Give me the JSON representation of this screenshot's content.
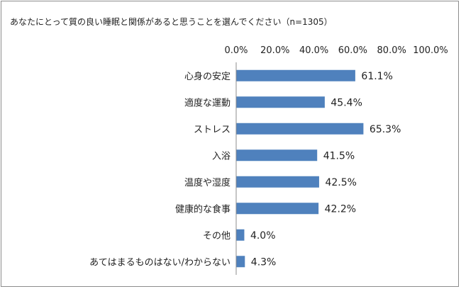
{
  "chart_data": {
    "type": "bar",
    "orientation": "horizontal",
    "title": "あなたにとって質の良い睡眠と関係があると思うことを選んでください（n=1305）",
    "categories": [
      "心身の安定",
      "適度な運動",
      "ストレス",
      "入浴",
      "温度や湿度",
      "健康的な食事",
      "その他",
      "あてはまるものはない/わからない"
    ],
    "values": [
      61.1,
      45.4,
      65.3,
      41.5,
      42.5,
      42.2,
      4.0,
      4.3
    ],
    "value_labels": [
      "61.1%",
      "45.4%",
      "65.3%",
      "41.5%",
      "42.5%",
      "42.2%",
      "4.0%",
      "4.3%"
    ],
    "xlim": [
      0,
      100
    ],
    "x_ticks": [
      "0.0%",
      "20.0%",
      "40.0%",
      "60.0%",
      "80.0%",
      "100.0%"
    ],
    "x_axis_position": "top",
    "grid": false,
    "legend": "none",
    "bar_color": "#4f81bd"
  }
}
